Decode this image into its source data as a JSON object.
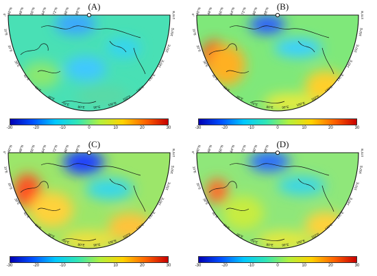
{
  "panels": [
    {
      "label": "(A)",
      "variant": "a"
    },
    {
      "label": "(B)",
      "variant": "b"
    },
    {
      "label": "(C)",
      "variant": "c"
    },
    {
      "label": "(D)",
      "variant": "d"
    }
  ],
  "colorbar": {
    "min": -30,
    "max": 30,
    "ticks": [
      "-30",
      "-20",
      "-10",
      "0",
      "10",
      "20",
      "30"
    ],
    "colors": [
      "#0000b4",
      "#0050ff",
      "#00c8ff",
      "#32e6b4",
      "#b4f03c",
      "#ffd200",
      "#ff6400",
      "#c80000"
    ]
  },
  "lat_labels": [
    "40°N",
    "48°N",
    "56°N",
    "64°N",
    "72°N",
    "80°N",
    "88°N"
  ],
  "lon_labels_left": [
    "0°",
    "10°E",
    "20°E",
    "30°E",
    "40°E",
    "50°E",
    "60°E",
    "70°E"
  ],
  "lon_labels_right": [
    "80°E",
    "90°E",
    "100°E",
    "110°E",
    "120°E",
    "130°E",
    "140°E",
    "150°E",
    "160°E",
    "170°E"
  ]
}
